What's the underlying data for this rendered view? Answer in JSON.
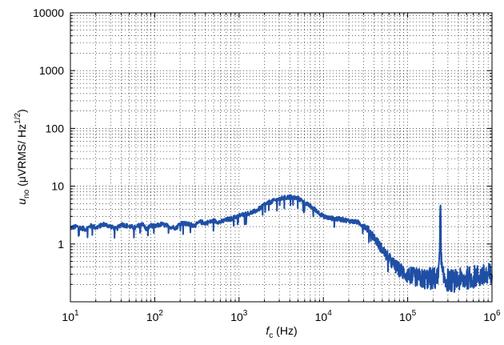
{
  "chart_data": {
    "type": "line",
    "xscale": "log",
    "yscale": "log",
    "xlim": [
      10,
      1000000
    ],
    "ylim": [
      0.1,
      10000
    ],
    "grid": true,
    "legend": "none",
    "line_color": "#1f4fa5",
    "x_ticks": [
      {
        "value": 10,
        "base": "10",
        "exp": "1"
      },
      {
        "value": 100,
        "base": "10",
        "exp": "2"
      },
      {
        "value": 1000,
        "base": "10",
        "exp": "3"
      },
      {
        "value": 10000,
        "base": "10",
        "exp": "4"
      },
      {
        "value": 100000,
        "base": "10",
        "exp": "5"
      },
      {
        "value": 1000000,
        "base": "10",
        "exp": "6"
      }
    ],
    "y_ticks": [
      {
        "value": 1,
        "label": "1"
      },
      {
        "value": 10,
        "label": "10"
      },
      {
        "value": 100,
        "label": "100"
      },
      {
        "value": 1000,
        "label": "1000"
      },
      {
        "value": 10000,
        "label": "10000"
      }
    ],
    "xlabel": {
      "symbol": "f",
      "sub": "c",
      "unit": " (Hz)"
    },
    "ylabel": {
      "symbol": "u",
      "sub": "no",
      "unit": " (μVRMS/ Hz",
      "exp": "1/2",
      "close": ")"
    },
    "series": [
      {
        "x": [
          10,
          12,
          15,
          18,
          20,
          25,
          30,
          35,
          40,
          50,
          60,
          70,
          80,
          90,
          100,
          120,
          150,
          180,
          200,
          250,
          300,
          350,
          400,
          500,
          600,
          700,
          800,
          900,
          1000,
          1200,
          1500,
          1800,
          2000,
          2500,
          3000,
          3500,
          4000,
          4500,
          5000,
          5500,
          6000,
          7000,
          8000,
          9000,
          10000,
          12000,
          15000,
          18000,
          20000,
          25000,
          30000,
          35000,
          40000,
          50000,
          60000,
          70000,
          80000,
          90000,
          100000,
          120000,
          150000,
          180000,
          200000,
          230000,
          240000,
          245000,
          250000,
          260000,
          300000,
          350000,
          400000,
          450000,
          500000,
          600000,
          700000,
          800000,
          900000,
          1000000
        ],
        "y": [
          1.9,
          2.0,
          1.8,
          2.1,
          1.9,
          2.2,
          2.0,
          1.8,
          2.2,
          2.0,
          1.9,
          2.3,
          1.8,
          2.1,
          2.0,
          2.2,
          2.0,
          1.9,
          2.3,
          2.2,
          2.1,
          2.4,
          2.3,
          2.5,
          2.4,
          2.6,
          2.7,
          2.9,
          3.1,
          3.3,
          3.6,
          4.2,
          4.8,
          5.5,
          6.0,
          6.3,
          6.5,
          6.3,
          6.1,
          5.7,
          5.2,
          4.5,
          3.9,
          3.4,
          3.0,
          2.8,
          2.7,
          2.6,
          2.5,
          2.4,
          2.1,
          1.7,
          1.3,
          0.8,
          0.55,
          0.42,
          0.36,
          0.32,
          0.29,
          0.27,
          0.25,
          0.25,
          0.25,
          0.26,
          1.2,
          4.8,
          0.5,
          0.26,
          0.24,
          0.23,
          0.24,
          0.24,
          0.26,
          0.27,
          0.28,
          0.28,
          0.29,
          0.3
        ]
      }
    ]
  }
}
